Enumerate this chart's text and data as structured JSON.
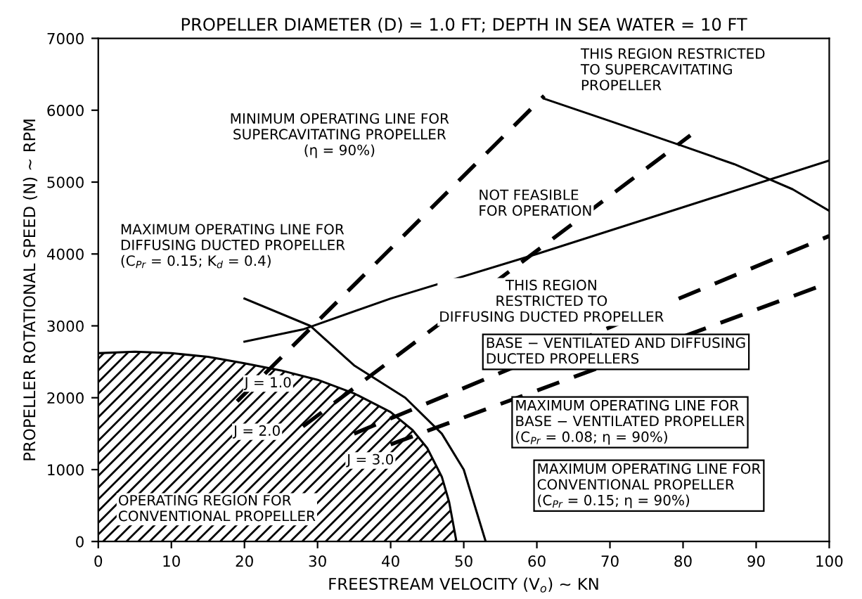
{
  "chart_data": {
    "type": "line",
    "title": "PROPELLER DIAMETER (D) = 1.0 FT; DEPTH IN SEA WATER = 10 FT",
    "xlabel": "FREESTREAM VELOCITY (V$_{o}$) ~ KN",
    "ylabel": "PROPELLER ROTATIONAL SPEED (N) ~ RPM",
    "xlim": [
      0,
      100
    ],
    "ylim": [
      0,
      7000
    ],
    "xticks": [
      0,
      10,
      20,
      30,
      40,
      50,
      60,
      70,
      80,
      90,
      100
    ],
    "yticks": [
      0,
      1000,
      2000,
      3000,
      4000,
      5000,
      6000,
      7000
    ],
    "grid": false,
    "legend": false,
    "marker": "none",
    "series": [
      {
        "type": "area",
        "color": "#000000",
        "x": [
          0,
          5,
          10,
          15,
          20,
          25,
          30,
          35,
          40,
          43,
          45,
          47,
          48,
          49
        ],
        "values": [
          2620,
          2640,
          2620,
          2570,
          2480,
          2380,
          2250,
          2060,
          1800,
          1550,
          1300,
          900,
          550,
          0
        ]
      },
      {
        "color": "#000000",
        "x": [
          20,
          29,
          35,
          42,
          47,
          50,
          53
        ],
        "values": [
          3380,
          3000,
          2450,
          2000,
          1500,
          1000,
          0
        ]
      },
      {
        "color": "#000000",
        "x": [
          20,
          28,
          40,
          60,
          80,
          100
        ],
        "values": [
          2780,
          2950,
          3380,
          4000,
          4650,
          5300
        ]
      },
      {
        "color": "#000000",
        "x": [
          61,
          70,
          80,
          87,
          95,
          100
        ],
        "values": [
          6160,
          5850,
          5500,
          5250,
          4900,
          4600
        ]
      },
      {
        "color": "#000000",
        "line_style": "dashed",
        "x": [
          19,
          61
        ],
        "values": [
          1950,
          6200
        ]
      },
      {
        "color": "#000000",
        "line_style": "dashed",
        "x": [
          28,
          81
        ],
        "values": [
          1600,
          5650
        ]
      },
      {
        "color": "#000000",
        "line_style": "dashed",
        "x": [
          35,
          100
        ],
        "values": [
          1500,
          4250
        ]
      },
      {
        "color": "#000000",
        "line_style": "dashed",
        "x": [
          40,
          100
        ],
        "values": [
          1350,
          3600
        ]
      }
    ],
    "annotations": [
      "MINIMUM OPERATING LINE FOR\nSUPERCAVITATING PROPELLER\n(η = 90%)",
      "THIS REGION RESTRICTED\nTO SUPERCAVITATING\nPROPELLER",
      "NOT FEASIBLE\nFOR OPERATION",
      "MAXIMUM OPERATING LINE FOR\nDIFFUSING DUCTED PROPELLER\n(C$_{Pr}$ = 0.15; K$_{d}$ = 0.4)",
      "THIS REGION\nRESTRICTED TO\nDIFFUSING DUCTED PROPELLER",
      "BASE − VENTILATED AND DIFFUSING\nDUCTED PROPELLERS",
      "MAXIMUM OPERATING LINE FOR\nBASE − VENTILATED PROPELLER\n(C$_{Pr}$ = 0.08; η = 90%)",
      "MAXIMUM OPERATING LINE FOR\nCONVENTIONAL PROPELLER\n(C$_{Pr}$ = 0.15; η = 90%)",
      "OPERATING REGION FOR\nCONVENTIONAL PROPELLER",
      "J = 1.0",
      "J = 2.0",
      "J = 3.0"
    ]
  }
}
